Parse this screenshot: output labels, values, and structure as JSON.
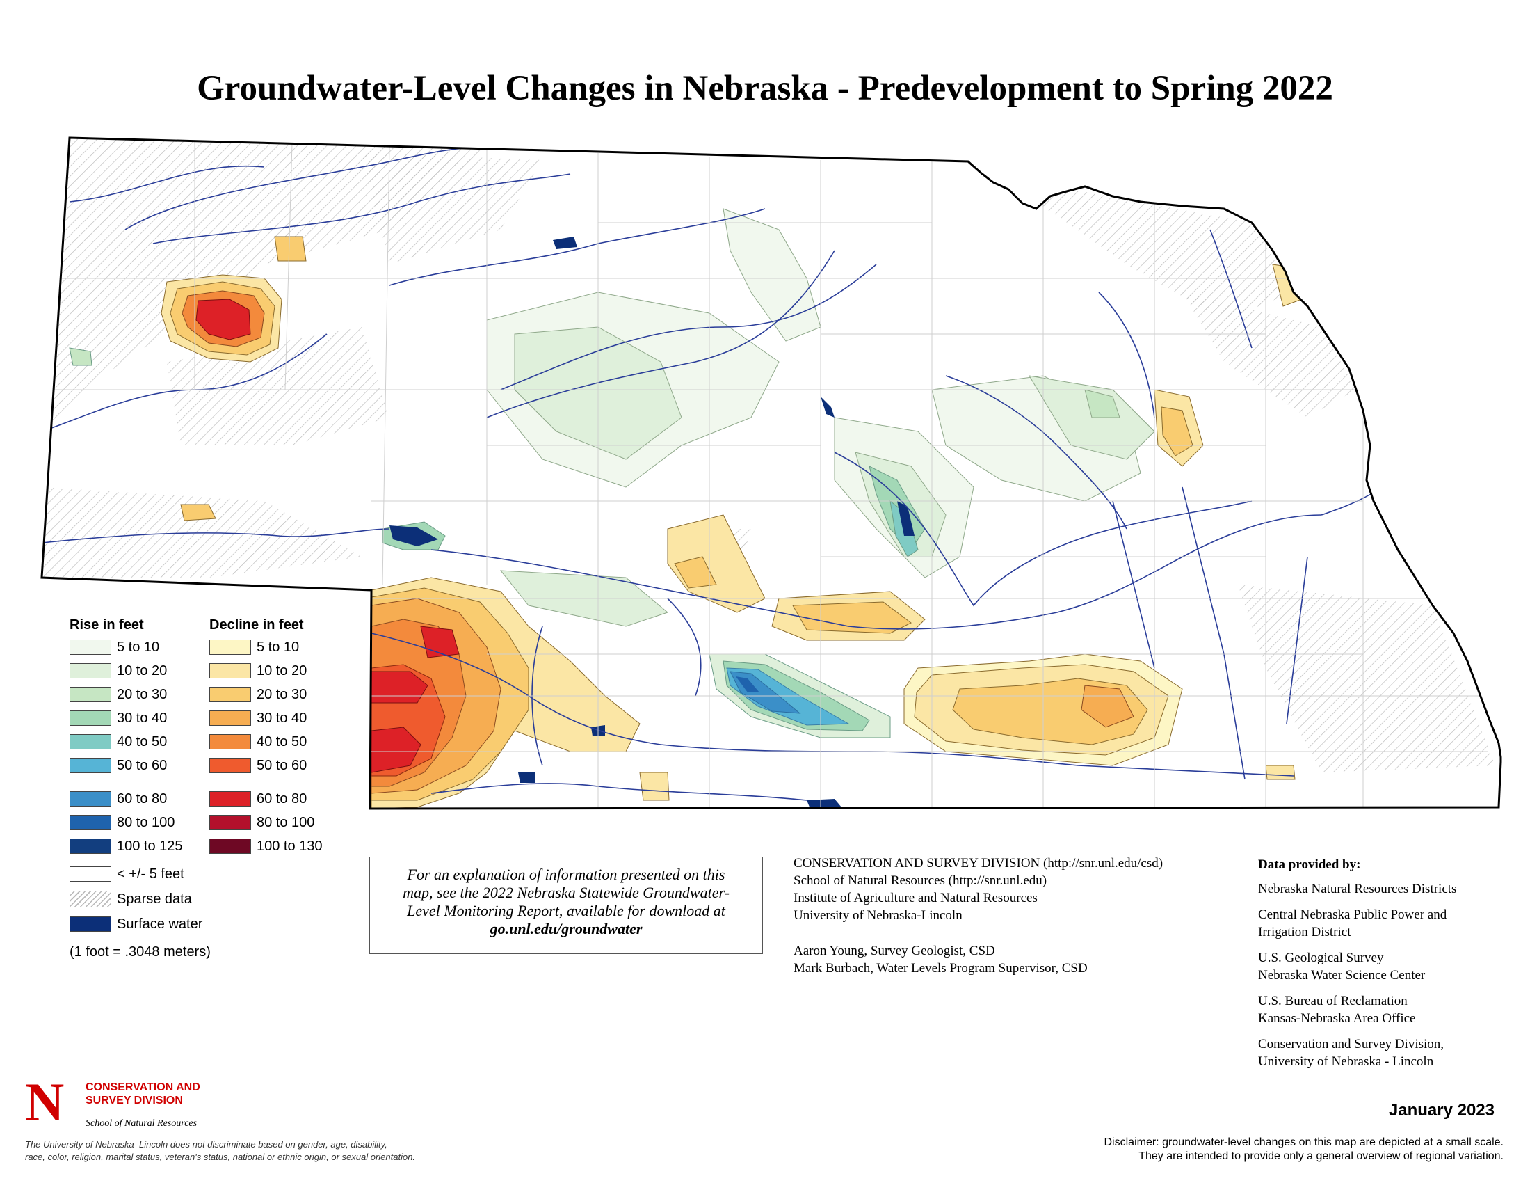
{
  "title": "Groundwater-Level Changes in Nebraska - Predevelopment to Spring 2022",
  "legend": {
    "rise_heading": "Rise in feet",
    "decline_heading": "Decline in feet",
    "rise": [
      {
        "label": "5 to 10",
        "color": "#f1f8ee"
      },
      {
        "label": "10 to 20",
        "color": "#dff0db"
      },
      {
        "label": "20 to 30",
        "color": "#c6e6c3"
      },
      {
        "label": "30 to 40",
        "color": "#a3d8b6"
      },
      {
        "label": "40 to 50",
        "color": "#7fcbc4"
      },
      {
        "label": "50 to 60",
        "color": "#56b4d6"
      },
      {
        "label": "60 to 80",
        "color": "#3b8fc8"
      },
      {
        "label": "80 to 100",
        "color": "#1f63ad"
      },
      {
        "label": "100 to 125",
        "color": "#123e7f"
      }
    ],
    "decline": [
      {
        "label": "5 to 10",
        "color": "#fdf6c5"
      },
      {
        "label": "10 to 20",
        "color": "#fbe6a5"
      },
      {
        "label": "20 to 30",
        "color": "#f9cc70"
      },
      {
        "label": "30 to 40",
        "color": "#f6ad52"
      },
      {
        "label": "40 to 50",
        "color": "#f38a3c"
      },
      {
        "label": "50 to 60",
        "color": "#ef5b2e"
      },
      {
        "label": "60 to 80",
        "color": "#dd2127"
      },
      {
        "label": "80 to 100",
        "color": "#b3102c"
      },
      {
        "label": "100 to 130",
        "color": "#6e0824"
      }
    ],
    "other": [
      {
        "label": "< +/- 5 feet",
        "color": "#ffffff"
      },
      {
        "label": "Sparse data",
        "color": "hatch"
      },
      {
        "label": "Surface water",
        "color": "#0c2f78"
      }
    ],
    "conversion": "(1 foot = .3048 meters)"
  },
  "info_box": {
    "line1": "For an explanation of information presented on this",
    "line2": "map, see the 2022 Nebraska Statewide Groundwater-",
    "line3": "Level Monitoring Report, available for download at",
    "link": "go.unl.edu/groundwater"
  },
  "credits": {
    "lines": [
      "CONSERVATION AND SURVEY DIVISION (http://snr.unl.edu/csd)",
      "School of Natural Resources (http://snr.unl.edu)",
      "Institute of Agriculture and Natural Resources",
      "University of Nebraska-Lincoln"
    ],
    "people": [
      "Aaron Young, Survey Geologist, CSD",
      "Mark Burbach, Water Levels Program Supervisor, CSD"
    ]
  },
  "data_providers": {
    "heading": "Data provided by:",
    "items": [
      [
        "Nebraska Natural Resources Districts"
      ],
      [
        "Central Nebraska Public Power and",
        "Irrigation District"
      ],
      [
        "U.S. Geological Survey",
        "Nebraska Water Science Center"
      ],
      [
        "U.S. Bureau of Reclamation",
        "Kansas-Nebraska Area Office"
      ],
      [
        "Conservation and Survey Division,",
        "University of Nebraska - Lincoln"
      ]
    ]
  },
  "logo": {
    "letter": "N",
    "line1": "CONSERVATION AND",
    "line2": "SURVEY DIVISION",
    "line3": "School of Natural Resources",
    "brand_color": "#d00000"
  },
  "date": "January 2023",
  "disclaimer": {
    "line1": "Disclaimer: groundwater-level changes on this map are depicted at a small scale.",
    "line2": "They are intended to provide only a general overview of regional variation."
  },
  "nondiscrimination": {
    "line1": "The University of Nebraska–Lincoln does not discriminate based on gender, age, disability,",
    "line2": "race, color, religion, marital status, veteran's status, national or ethnic origin, or sexual orientation."
  }
}
